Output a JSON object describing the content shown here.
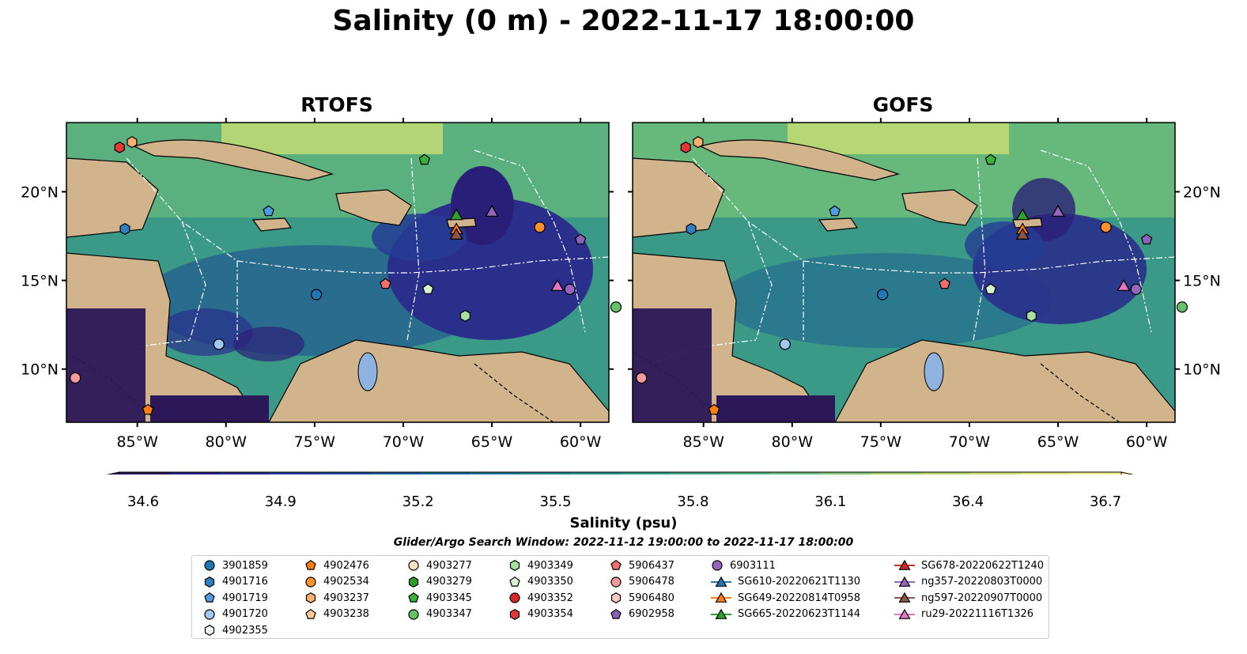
{
  "title": "Salinity (0 m) - 2022-11-17 18:00:00",
  "panels": [
    {
      "title": "RTOFS"
    },
    {
      "title": "GOFS"
    }
  ],
  "x_ticks": [
    "85°W",
    "80°W",
    "75°W",
    "70°W",
    "65°W",
    "60°W"
  ],
  "y_ticks": [
    "20°N",
    "15°N",
    "10°N"
  ],
  "colorbar": {
    "label": "Salinity (psu)",
    "ticks": [
      "34.6",
      "34.9",
      "35.2",
      "35.5",
      "35.8",
      "36.1",
      "36.4",
      "36.7"
    ],
    "colors": [
      "#2a1858",
      "#2b1f78",
      "#2a2f8c",
      "#263c94",
      "#224b97",
      "#1e5996",
      "#1f6793",
      "#227390",
      "#27808d",
      "#2d8c8a",
      "#379988",
      "#45a585",
      "#57b080",
      "#6bbb7a",
      "#82c473",
      "#9bcd6e",
      "#b3d56d",
      "#cbde73",
      "#e0e680",
      "#f0ec8f"
    ],
    "extend": "both"
  },
  "search_window": "Glider/Argo Search Window: 2022-11-12 19:00:00 to 2022-11-17 18:00:00",
  "legend_columns": [
    [
      {
        "label": "3901859",
        "marker": "circle",
        "color": "#1f77b4"
      },
      {
        "label": "4901716",
        "marker": "hexagon",
        "color": "#2f80c0"
      },
      {
        "label": "4901719",
        "marker": "pentagon",
        "color": "#4f9be0"
      },
      {
        "label": "4901720",
        "marker": "circle",
        "color": "#9fc9ee"
      },
      {
        "label": "4902355",
        "marker": "hexagon",
        "color": "#e8f2fb"
      }
    ],
    [
      {
        "label": "4902476",
        "marker": "pentagon",
        "color": "#ff7f0e"
      },
      {
        "label": "4902534",
        "marker": "circle",
        "color": "#ff9030"
      },
      {
        "label": "4903237",
        "marker": "hexagon",
        "color": "#ffb070"
      },
      {
        "label": "4903238",
        "marker": "pentagon",
        "color": "#ffc89a"
      }
    ],
    [
      {
        "label": "4903277",
        "marker": "circle",
        "color": "#ffe0c0"
      },
      {
        "label": "4903279",
        "marker": "hexagon",
        "color": "#2ca02c"
      },
      {
        "label": "4903345",
        "marker": "pentagon",
        "color": "#3cb03c"
      },
      {
        "label": "4903347",
        "marker": "circle",
        "color": "#66c266"
      }
    ],
    [
      {
        "label": "4903349",
        "marker": "hexagon",
        "color": "#a8e0a0"
      },
      {
        "label": "4903350",
        "marker": "pentagon",
        "color": "#d8f2d0"
      },
      {
        "label": "4903352",
        "marker": "circle",
        "color": "#d62728"
      },
      {
        "label": "4903354",
        "marker": "hexagon",
        "color": "#e03838"
      }
    ],
    [
      {
        "label": "5906437",
        "marker": "pentagon",
        "color": "#f07070"
      },
      {
        "label": "5906478",
        "marker": "circle",
        "color": "#f49a9a"
      },
      {
        "label": "5906480",
        "marker": "hexagon",
        "color": "#fbc8c8"
      },
      {
        "label": "6902958",
        "marker": "pentagon",
        "color": "#8c62b8"
      }
    ],
    [
      {
        "label": "6903111",
        "marker": "circle",
        "color": "#9467bd"
      },
      {
        "label": "SG610-20220621T1130",
        "marker": "triangle-line",
        "color": "#1f77b4"
      },
      {
        "label": "SG649-20220814T0958",
        "marker": "triangle-line",
        "color": "#ff7f0e"
      },
      {
        "label": "SG665-20220623T1144",
        "marker": "triangle-line",
        "color": "#2ca02c"
      }
    ],
    [
      {
        "label": "SG678-20220622T1240",
        "marker": "triangle-line",
        "color": "#d62728"
      },
      {
        "label": "ng357-20220803T0000",
        "marker": "triangle-line",
        "color": "#9467bd"
      },
      {
        "label": "ng597-20220907T0000",
        "marker": "triangle-line",
        "color": "#8c564b"
      },
      {
        "label": "ru29-20221116T1326",
        "marker": "triangle-line",
        "color": "#e377c2"
      }
    ]
  ],
  "map_markers": [
    {
      "lon": -86.0,
      "lat": 22.5,
      "marker": "hexagon",
      "color": "#e03838"
    },
    {
      "lon": -85.3,
      "lat": 22.8,
      "marker": "hexagon",
      "color": "#ffb070"
    },
    {
      "lon": -85.7,
      "lat": 17.9,
      "marker": "hexagon",
      "color": "#2f80c0"
    },
    {
      "lon": -77.6,
      "lat": 18.9,
      "marker": "pentagon",
      "color": "#4f9be0"
    },
    {
      "lon": -74.9,
      "lat": 14.2,
      "marker": "circle",
      "color": "#1f77b4"
    },
    {
      "lon": -80.4,
      "lat": 11.4,
      "marker": "circle",
      "color": "#9fc9ee"
    },
    {
      "lon": -88.5,
      "lat": 9.5,
      "marker": "circle",
      "color": "#f49a9a"
    },
    {
      "lon": -84.4,
      "lat": 7.7,
      "marker": "pentagon",
      "color": "#ff7f0e"
    },
    {
      "lon": -68.8,
      "lat": 21.8,
      "marker": "pentagon",
      "color": "#3cb03c"
    },
    {
      "lon": -62.3,
      "lat": 18.0,
      "marker": "circle",
      "color": "#ff9030"
    },
    {
      "lon": -60.0,
      "lat": 17.3,
      "marker": "pentagon",
      "color": "#8c62b8"
    },
    {
      "lon": -66.5,
      "lat": 13.0,
      "marker": "hexagon",
      "color": "#a8e0a0"
    },
    {
      "lon": -58.0,
      "lat": 13.5,
      "marker": "circle",
      "color": "#66c266"
    },
    {
      "lon": -60.6,
      "lat": 14.5,
      "marker": "circle",
      "color": "#9467bd"
    }
  ],
  "map_markers_rtofs": [
    {
      "lon": -71.0,
      "lat": 14.8,
      "marker": "pentagon",
      "color": "#f07070"
    },
    {
      "lon": -68.6,
      "lat": 14.5,
      "marker": "pentagon",
      "color": "#d8f2d0"
    }
  ],
  "map_markers_gofs": [
    {
      "lon": -71.4,
      "lat": 14.8,
      "marker": "pentagon",
      "color": "#f07070"
    },
    {
      "lon": -68.8,
      "lat": 14.5,
      "marker": "pentagon",
      "color": "#d8f2d0"
    }
  ],
  "map_gliders": [
    {
      "lon": -67.0,
      "lat": 18.7,
      "color": "#2ca02c"
    },
    {
      "lon": -67.0,
      "lat": 17.9,
      "color": "#ff7f0e"
    },
    {
      "lon": -67.0,
      "lat": 17.6,
      "color": "#8c564b"
    },
    {
      "lon": -65.0,
      "lat": 18.9,
      "color": "#9467bd"
    },
    {
      "lon": -61.3,
      "lat": 14.7,
      "color": "#e377c2"
    }
  ]
}
